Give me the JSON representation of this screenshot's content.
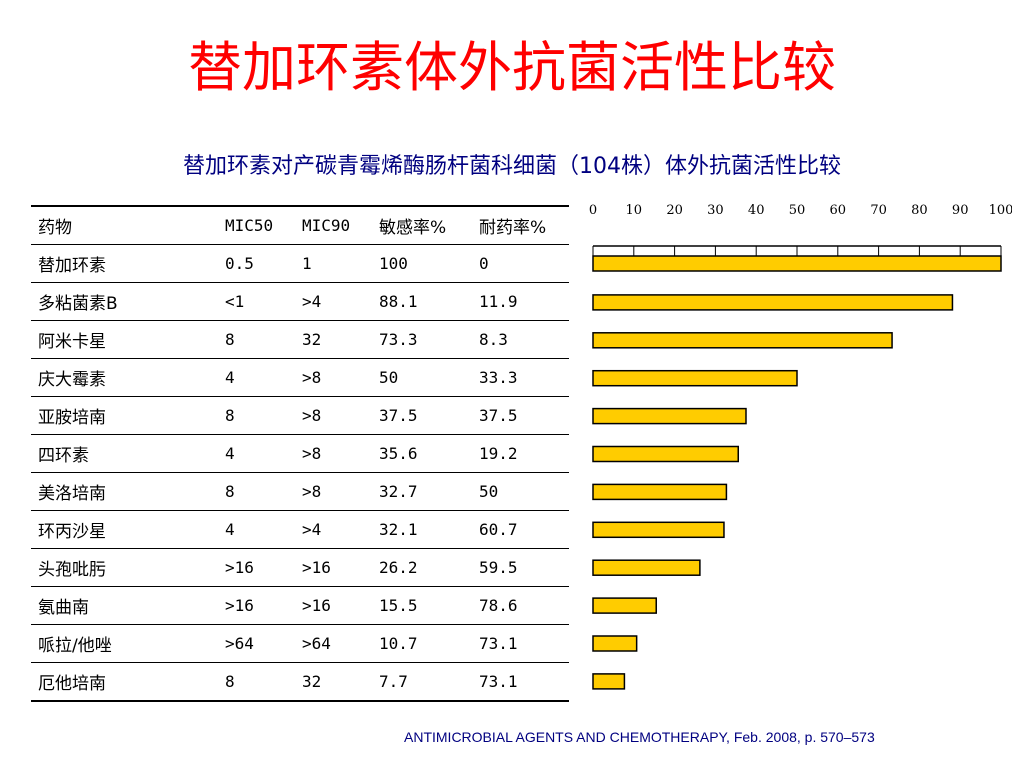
{
  "slide": {
    "title": "替加环素体外抗菌活性比较",
    "subtitle": "替加环素对产碳青霉烯酶肠杆菌科细菌（104株）体外抗菌活性比较",
    "source": "ANTIMICROBIAL AGENTS AND CHEMOTHERAPY, Feb. 2008, p. 570–573"
  },
  "table": {
    "headers": [
      "药物",
      "MIC50",
      "MIC90",
      "敏感率%",
      "耐药率%"
    ],
    "rows": [
      [
        "替加环素",
        "0.5",
        "1",
        "100",
        "0"
      ],
      [
        "多粘菌素B",
        "<1",
        ">4",
        "88.1",
        "11.9"
      ],
      [
        "阿米卡星",
        "8",
        "32",
        "73.3",
        "8.3"
      ],
      [
        "庆大霉素",
        "4",
        ">8",
        "50",
        "33.3"
      ],
      [
        "亚胺培南",
        "8",
        ">8",
        "37.5",
        "37.5"
      ],
      [
        "四环素",
        "4",
        ">8",
        "35.6",
        "19.2"
      ],
      [
        "美洛培南",
        "8",
        ">8",
        "32.7",
        "50"
      ],
      [
        "环丙沙星",
        "4",
        ">4",
        "32.1",
        "60.7"
      ],
      [
        "头孢吡肟",
        ">16",
        ">16",
        "26.2",
        "59.5"
      ],
      [
        "氨曲南",
        ">16",
        ">16",
        "15.5",
        "78.6"
      ],
      [
        "哌拉/他唑",
        ">64",
        ">64",
        "10.7",
        "73.1"
      ],
      [
        "厄他培南",
        "8",
        "32",
        "7.7",
        "73.1"
      ]
    ]
  },
  "chart_data": {
    "type": "bar",
    "orientation": "horizontal",
    "categories": [
      "替加环素",
      "多粘菌素B",
      "阿米卡星",
      "庆大霉素",
      "亚胺培南",
      "四环素",
      "美洛培南",
      "环丙沙星",
      "头孢吡肟",
      "氨曲南",
      "哌拉/他唑",
      "厄他培南"
    ],
    "values": [
      100,
      88.1,
      73.3,
      50,
      37.5,
      35.6,
      32.7,
      32.1,
      26.2,
      15.5,
      10.7,
      7.7
    ],
    "xlim": [
      0,
      100
    ],
    "xticks": [
      0,
      10,
      20,
      30,
      40,
      50,
      60,
      70,
      80,
      90,
      100
    ],
    "axis_position": "top",
    "grid": false,
    "bar_color": "#FFCC00",
    "bar_edge_color": "#000000"
  }
}
